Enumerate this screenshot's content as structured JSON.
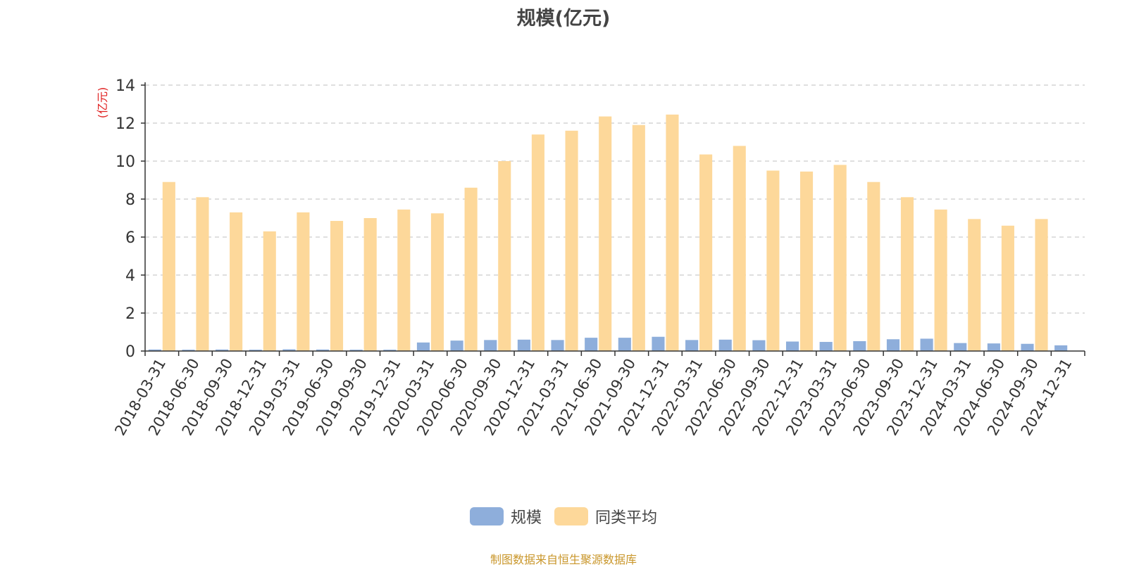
{
  "chart_data": {
    "type": "bar",
    "title": "规模(亿元)",
    "ylabel": "(亿元)",
    "xlabel": "",
    "ylim": [
      0,
      14
    ],
    "yticks": [
      "0",
      "2",
      "4",
      "6",
      "8",
      "10",
      "12",
      "14"
    ],
    "grid": true,
    "legend_position": "bottom-center",
    "categories": [
      "2018-03-31",
      "2018-06-30",
      "2018-09-30",
      "2018-12-31",
      "2019-03-31",
      "2019-06-30",
      "2019-09-30",
      "2019-12-31",
      "2020-03-31",
      "2020-06-30",
      "2020-09-30",
      "2020-12-31",
      "2021-03-31",
      "2021-06-30",
      "2021-09-30",
      "2021-12-31",
      "2022-03-31",
      "2022-06-30",
      "2022-09-30",
      "2022-12-31",
      "2023-03-31",
      "2023-06-30",
      "2023-09-30",
      "2023-12-31",
      "2024-03-31",
      "2024-06-30",
      "2024-09-30",
      "2024-12-31"
    ],
    "series": [
      {
        "name": "规模",
        "color": "#8eaedb",
        "values": [
          0.08,
          0.07,
          0.08,
          0.07,
          0.09,
          0.08,
          0.07,
          0.07,
          0.45,
          0.55,
          0.58,
          0.6,
          0.58,
          0.7,
          0.7,
          0.75,
          0.58,
          0.6,
          0.57,
          0.5,
          0.48,
          0.52,
          0.62,
          0.65,
          0.42,
          0.4,
          0.38,
          0.3
        ]
      },
      {
        "name": "同类平均",
        "color": "#fdd89a",
        "values": [
          8.9,
          8.1,
          7.3,
          6.3,
          7.3,
          6.85,
          7.0,
          7.45,
          7.25,
          8.6,
          10.0,
          11.4,
          11.6,
          12.35,
          11.9,
          12.45,
          10.35,
          10.8,
          9.5,
          9.45,
          9.8,
          8.9,
          8.1,
          7.45,
          6.95,
          6.6,
          6.95,
          null
        ]
      }
    ]
  },
  "source_note": "制图数据来自恒生聚源数据库"
}
